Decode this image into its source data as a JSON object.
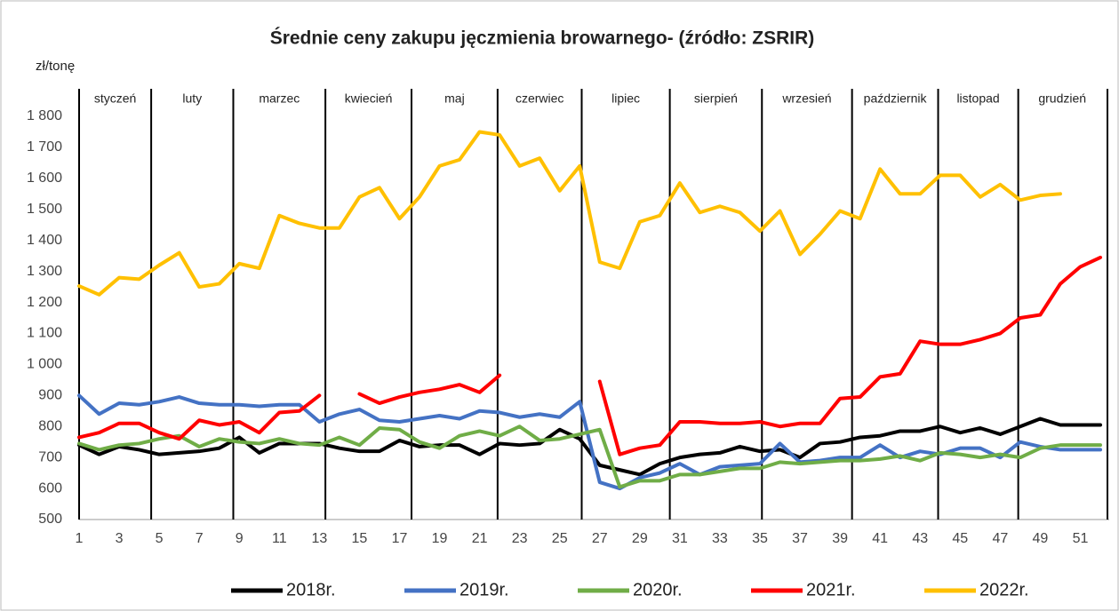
{
  "chart_data": {
    "type": "line",
    "title": "Średnie ceny zakupu jęczmienia browarnego- (źródło: ZSRIR)",
    "y_label": "zł/tonę",
    "x": [
      1,
      2,
      3,
      4,
      5,
      6,
      7,
      8,
      9,
      10,
      11,
      12,
      13,
      14,
      15,
      16,
      17,
      18,
      19,
      20,
      21,
      22,
      23,
      24,
      25,
      26,
      27,
      28,
      29,
      30,
      31,
      32,
      33,
      34,
      35,
      36,
      37,
      38,
      39,
      40,
      41,
      42,
      43,
      44,
      45,
      46,
      47,
      48,
      49,
      50,
      51,
      52
    ],
    "xlim": [
      1,
      52
    ],
    "xticks": [
      1,
      3,
      5,
      7,
      9,
      11,
      13,
      15,
      17,
      19,
      21,
      23,
      25,
      27,
      29,
      31,
      33,
      35,
      37,
      39,
      41,
      43,
      45,
      47,
      49,
      51
    ],
    "ylim": [
      500,
      1800
    ],
    "yticks": [
      500,
      600,
      700,
      800,
      900,
      {
        "value": 1000,
        "label": "1 000"
      },
      {
        "value": 1100,
        "label": "1 100"
      },
      {
        "value": 1200,
        "label": "1 200"
      },
      {
        "value": 1300,
        "label": "1 300"
      },
      {
        "value": 1400,
        "label": "1 400"
      },
      {
        "value": 1500,
        "label": "1 500"
      },
      {
        "value": 1600,
        "label": "1 600"
      },
      {
        "value": 1700,
        "label": "1 700"
      },
      {
        "value": 1800,
        "label": "1 800"
      }
    ],
    "months": [
      {
        "label": "styczeń",
        "start": 1
      },
      {
        "label": "luty",
        "start": 4.6
      },
      {
        "label": "marzec",
        "start": 8.7
      },
      {
        "label": "kwiecień",
        "start": 13.3
      },
      {
        "label": "maj",
        "start": 17.6
      },
      {
        "label": "czerwiec",
        "start": 21.9
      },
      {
        "label": "lipiec",
        "start": 26.1
      },
      {
        "label": "sierpień",
        "start": 30.5
      },
      {
        "label": "wrzesień",
        "start": 35.1
      },
      {
        "label": "październik",
        "start": 39.6
      },
      {
        "label": "listopad",
        "start": 43.9
      },
      {
        "label": "grudzień",
        "start": 47.9
      }
    ],
    "legend": "bottom",
    "series": [
      {
        "name": "2018r.",
        "color": "#000000",
        "values": [
          740,
          710,
          735,
          725,
          710,
          715,
          720,
          730,
          765,
          715,
          745,
          745,
          745,
          730,
          720,
          720,
          755,
          735,
          740,
          740,
          710,
          745,
          740,
          745,
          790,
          760,
          675,
          660,
          645,
          680,
          700,
          710,
          715,
          735,
          720,
          725,
          700,
          745,
          750,
          765,
          770,
          785,
          785,
          800,
          780,
          795,
          775,
          800,
          825,
          805,
          805,
          805
        ]
      },
      {
        "name": "2019r.",
        "color": "#4472c4",
        "values": [
          900,
          840,
          875,
          870,
          880,
          895,
          875,
          870,
          870,
          865,
          870,
          870,
          815,
          840,
          855,
          820,
          815,
          825,
          835,
          825,
          850,
          845,
          830,
          840,
          830,
          880,
          620,
          600,
          635,
          650,
          680,
          645,
          670,
          675,
          680,
          745,
          685,
          690,
          700,
          700,
          740,
          700,
          720,
          710,
          730,
          730,
          700,
          750,
          735,
          725,
          725,
          725
        ]
      },
      {
        "name": "2020r.",
        "color": "#70ad47",
        "values": [
          745,
          725,
          740,
          745,
          760,
          770,
          735,
          760,
          750,
          745,
          760,
          745,
          740,
          765,
          740,
          795,
          790,
          750,
          730,
          770,
          785,
          770,
          800,
          755,
          760,
          775,
          790,
          605,
          625,
          625,
          645,
          645,
          655,
          665,
          665,
          685,
          680,
          685,
          690,
          690,
          695,
          705,
          690,
          715,
          710,
          700,
          710,
          700,
          730,
          740,
          740,
          740
        ]
      },
      {
        "name": "2021r.",
        "color": "#ff0000",
        "values": [
          765,
          780,
          810,
          810,
          780,
          760,
          820,
          805,
          815,
          780,
          845,
          850,
          900,
          null,
          905,
          875,
          895,
          910,
          920,
          935,
          910,
          965,
          null,
          null,
          null,
          null,
          945,
          710,
          730,
          740,
          815,
          815,
          810,
          810,
          815,
          800,
          810,
          810,
          890,
          895,
          960,
          970,
          1075,
          1065,
          1065,
          1080,
          1100,
          1150,
          1160,
          1260,
          1315,
          1345
        ]
      },
      {
        "name": "2022r.",
        "color": "#ffc000",
        "values": [
          1253,
          1225,
          1280,
          1275,
          1320,
          1360,
          1250,
          1260,
          1325,
          1310,
          1480,
          1455,
          1440,
          1440,
          1540,
          1570,
          1470,
          1540,
          1640,
          1660,
          1750,
          1740,
          1640,
          1665,
          1560,
          1640,
          1330,
          1310,
          1460,
          1480,
          1585,
          1490,
          1510,
          1490,
          1430,
          1495,
          1355,
          1420,
          1495,
          1470,
          1630,
          1550,
          1550,
          1610,
          1610,
          1540,
          1580,
          1530,
          1545,
          1550,
          null,
          null
        ]
      }
    ]
  }
}
